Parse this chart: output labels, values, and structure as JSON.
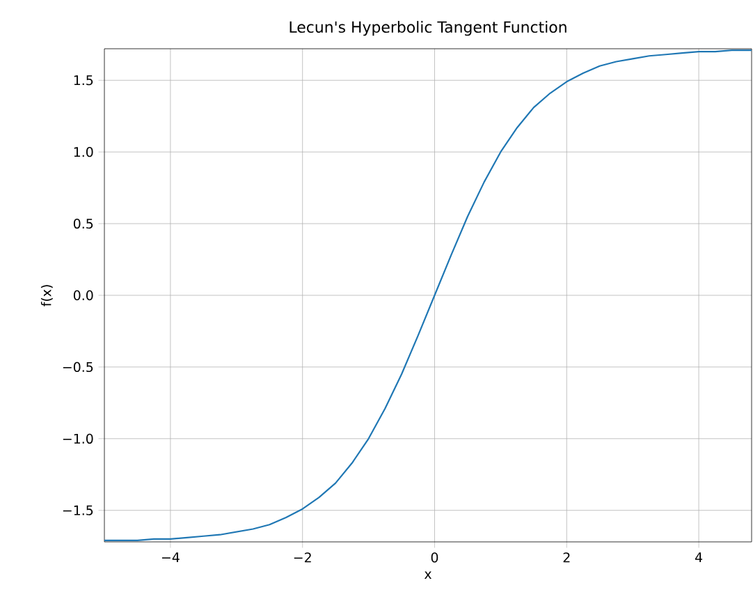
{
  "chart_data": {
    "type": "line",
    "title": "Lecun's Hyperbolic Tangent Function",
    "xlabel": "x",
    "ylabel": "f(x)",
    "series": [
      {
        "color": "#1f77b4",
        "x": [
          -5,
          -4.75,
          -4.5,
          -4.25,
          -4,
          -3.75,
          -3.5,
          -3.25,
          -3,
          -2.75,
          -2.5,
          -2.25,
          -2,
          -1.75,
          -1.5,
          -1.25,
          -1,
          -0.75,
          -0.5,
          -0.25,
          0,
          0.25,
          0.5,
          0.75,
          1,
          1.25,
          1.5,
          1.75,
          2,
          2.25,
          2.5,
          2.75,
          3,
          3.25,
          3.5,
          3.75,
          4,
          4.25,
          4.5,
          4.75,
          4.8
        ],
        "values": [
          -1.71,
          -1.71,
          -1.71,
          -1.7,
          -1.7,
          -1.69,
          -1.68,
          -1.67,
          -1.65,
          -1.63,
          -1.6,
          -1.55,
          -1.49,
          -1.41,
          -1.31,
          -1.17,
          -1.0,
          -0.79,
          -0.55,
          -0.28,
          0,
          0.28,
          0.55,
          0.79,
          1.0,
          1.17,
          1.31,
          1.41,
          1.49,
          1.55,
          1.6,
          1.63,
          1.65,
          1.67,
          1.68,
          1.69,
          1.7,
          1.7,
          1.71,
          1.71,
          1.71
        ]
      }
    ],
    "xlim": [
      -5,
      4.8
    ],
    "ylim": [
      -1.72,
      1.72
    ],
    "xticks": [
      {
        "value": -4,
        "label": "−4"
      },
      {
        "value": -2,
        "label": "−2"
      },
      0,
      2,
      4
    ],
    "yticks": [
      {
        "value": -1.5,
        "label": "−1.5"
      },
      {
        "value": -1,
        "label": "−1.0"
      },
      {
        "value": -0.5,
        "label": "−0.5"
      },
      {
        "value": 0,
        "label": "0.0"
      },
      {
        "value": 0.5,
        "label": "0.5"
      },
      {
        "value": 1,
        "label": "1.0"
      },
      {
        "value": 1.5,
        "label": "1.5"
      }
    ],
    "grid": true,
    "marker": "none",
    "line_style": "solid"
  }
}
